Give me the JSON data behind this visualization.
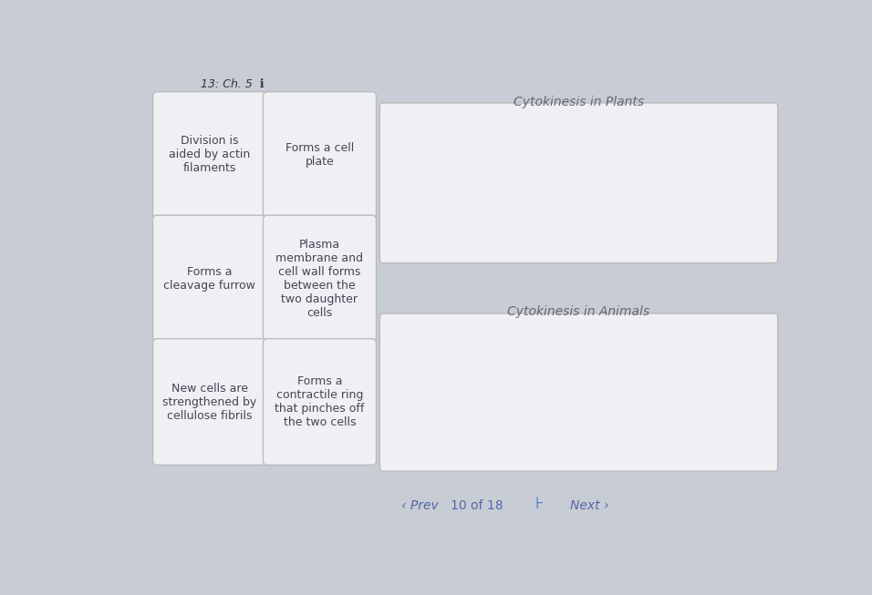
{
  "background_color": "#c8ccd4",
  "section_plants": "Cytokinesis in Plants",
  "section_animals": "Cytokinesis in Animals",
  "left_boxes": [
    {
      "text": "Division is\naided by actin\nfilaments",
      "row": 0,
      "col": 0
    },
    {
      "text": "Forms a cell\nplate",
      "row": 0,
      "col": 1
    },
    {
      "text": "Forms a\ncleavage furrow",
      "row": 1,
      "col": 0
    },
    {
      "text": "Plasma\nmembrane and\ncell wall forms\nbetween the\ntwo daughter\ncells",
      "row": 1,
      "col": 1
    },
    {
      "text": "New cells are\nstrengthened by\ncellulose fibrils",
      "row": 2,
      "col": 0
    },
    {
      "text": "Forms a\ncontractile ring\nthat pinches off\nthe two cells",
      "row": 2,
      "col": 1
    }
  ],
  "box_bg": "#f0f0f4",
  "box_edge": "#bbbbbb",
  "right_box_bg": "#f0f0f4",
  "right_box_edge": "#bbbbbb",
  "label_color": "#666677",
  "text_color": "#444455",
  "header_color": "#333344",
  "footer_color": "#5566aa"
}
